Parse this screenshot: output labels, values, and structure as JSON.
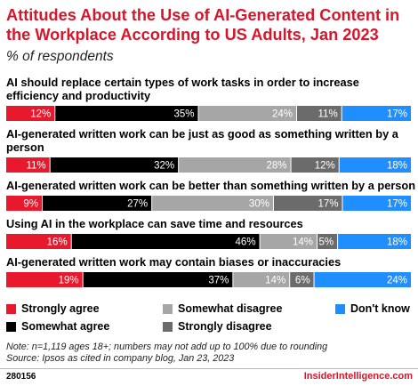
{
  "header": {
    "title": "Attitudes About the Use of AI-Generated Content in the Workplace According to US Adults, Jan 2023",
    "subtitle": "% of respondents"
  },
  "chart_data": {
    "type": "bar",
    "orientation": "horizontal",
    "stacked": true,
    "categories": [
      "AI should replace certain types of work tasks in order to increase efficiency and productivity",
      "AI-generated written work can be just as good as something written by a person",
      "AI-generated written work can be better than something written by a person",
      "Using AI in the workplace can save time and resources",
      "AI-generated written work may contain biases or inaccuracies"
    ],
    "series": [
      {
        "name": "Strongly agree",
        "color": "#e8192c",
        "text_color": "#ffffff",
        "values": [
          12,
          11,
          9,
          16,
          19
        ]
      },
      {
        "name": "Somewhat agree",
        "color": "#000000",
        "text_color": "#ffffff",
        "values": [
          35,
          32,
          27,
          46,
          37
        ]
      },
      {
        "name": "Somewhat disagree",
        "color": "#a6a6a6",
        "text_color": "#ffffff",
        "values": [
          24,
          28,
          30,
          14,
          14
        ]
      },
      {
        "name": "Strongly disagree",
        "color": "#6b6b6b",
        "text_color": "#ffffff",
        "values": [
          11,
          12,
          17,
          5,
          6
        ]
      },
      {
        "name": "Don't know",
        "color": "#1f8fff",
        "text_color": "#ffffff",
        "values": [
          17,
          18,
          17,
          18,
          24
        ]
      }
    ],
    "value_suffix": "%",
    "legend_position": "bottom",
    "grid": false
  },
  "note": {
    "line1": "Note: n=1,119 ages 18+; numbers may not add up to 100% due to rounding",
    "line2": "Source: Ipsos as cited in company blog, Jan 23, 2023"
  },
  "footer": {
    "id": "280156",
    "brand": "InsiderIntelligence.com"
  }
}
